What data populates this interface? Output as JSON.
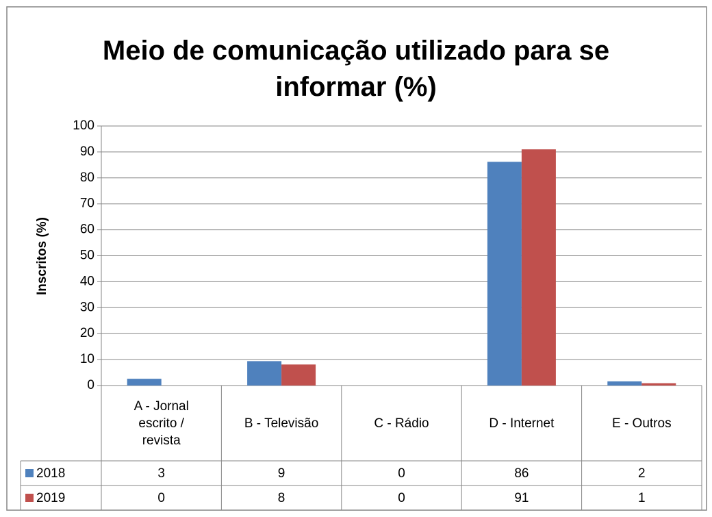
{
  "chart_data": {
    "type": "bar",
    "title": "Meio de comunicação utilizado para se informar (%)",
    "y_label": "Inscritos (%)",
    "categories": [
      "A - Jornal escrito / revista",
      "B - Televisão",
      "C - Rádio",
      "D - Internet",
      "E - Outros"
    ],
    "series": [
      {
        "name": "2018",
        "color": "#4f81bd",
        "values": [
          2.6,
          9.4,
          0,
          86.2,
          1.6
        ],
        "value_labels": [
          "3",
          "9",
          "0",
          "86",
          "2"
        ]
      },
      {
        "name": "2019",
        "color": "#c0504d",
        "values": [
          0,
          8.1,
          0,
          91,
          0.9
        ],
        "value_labels": [
          "0",
          "8",
          "0",
          "91",
          "1"
        ]
      }
    ],
    "ylim": [
      0,
      100
    ],
    "yticks": [
      0,
      10,
      20,
      30,
      40,
      50,
      60,
      70,
      80,
      90,
      100
    ],
    "grid": true
  }
}
